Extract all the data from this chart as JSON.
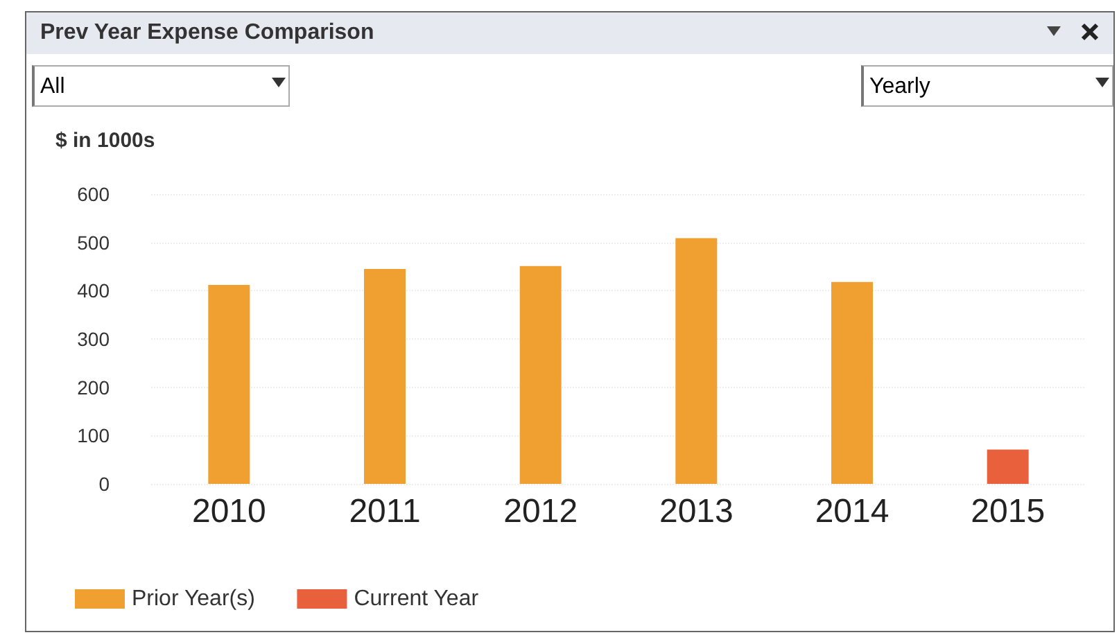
{
  "chart_data": {
    "type": "bar",
    "title": "Prev Year Expense Comparison",
    "ylabel": "$ in 1000s",
    "annotations": [
      "All",
      "Yearly"
    ],
    "categories": [
      "2010",
      "2011",
      "2012",
      "2013",
      "2014",
      "2015"
    ],
    "series": [
      {
        "name": "Prior Year(s)",
        "color": "#f0a030",
        "values": [
          412,
          445,
          451,
          509,
          418,
          null
        ]
      },
      {
        "name": "Current Year",
        "color": "#e8603c",
        "values": [
          null,
          null,
          null,
          null,
          null,
          71
        ]
      }
    ],
    "stacked": true,
    "ylim": [
      0,
      600
    ],
    "yticks": [
      0,
      100,
      200,
      300,
      400,
      500,
      600
    ],
    "grid": "y",
    "legend": "bottom left"
  }
}
